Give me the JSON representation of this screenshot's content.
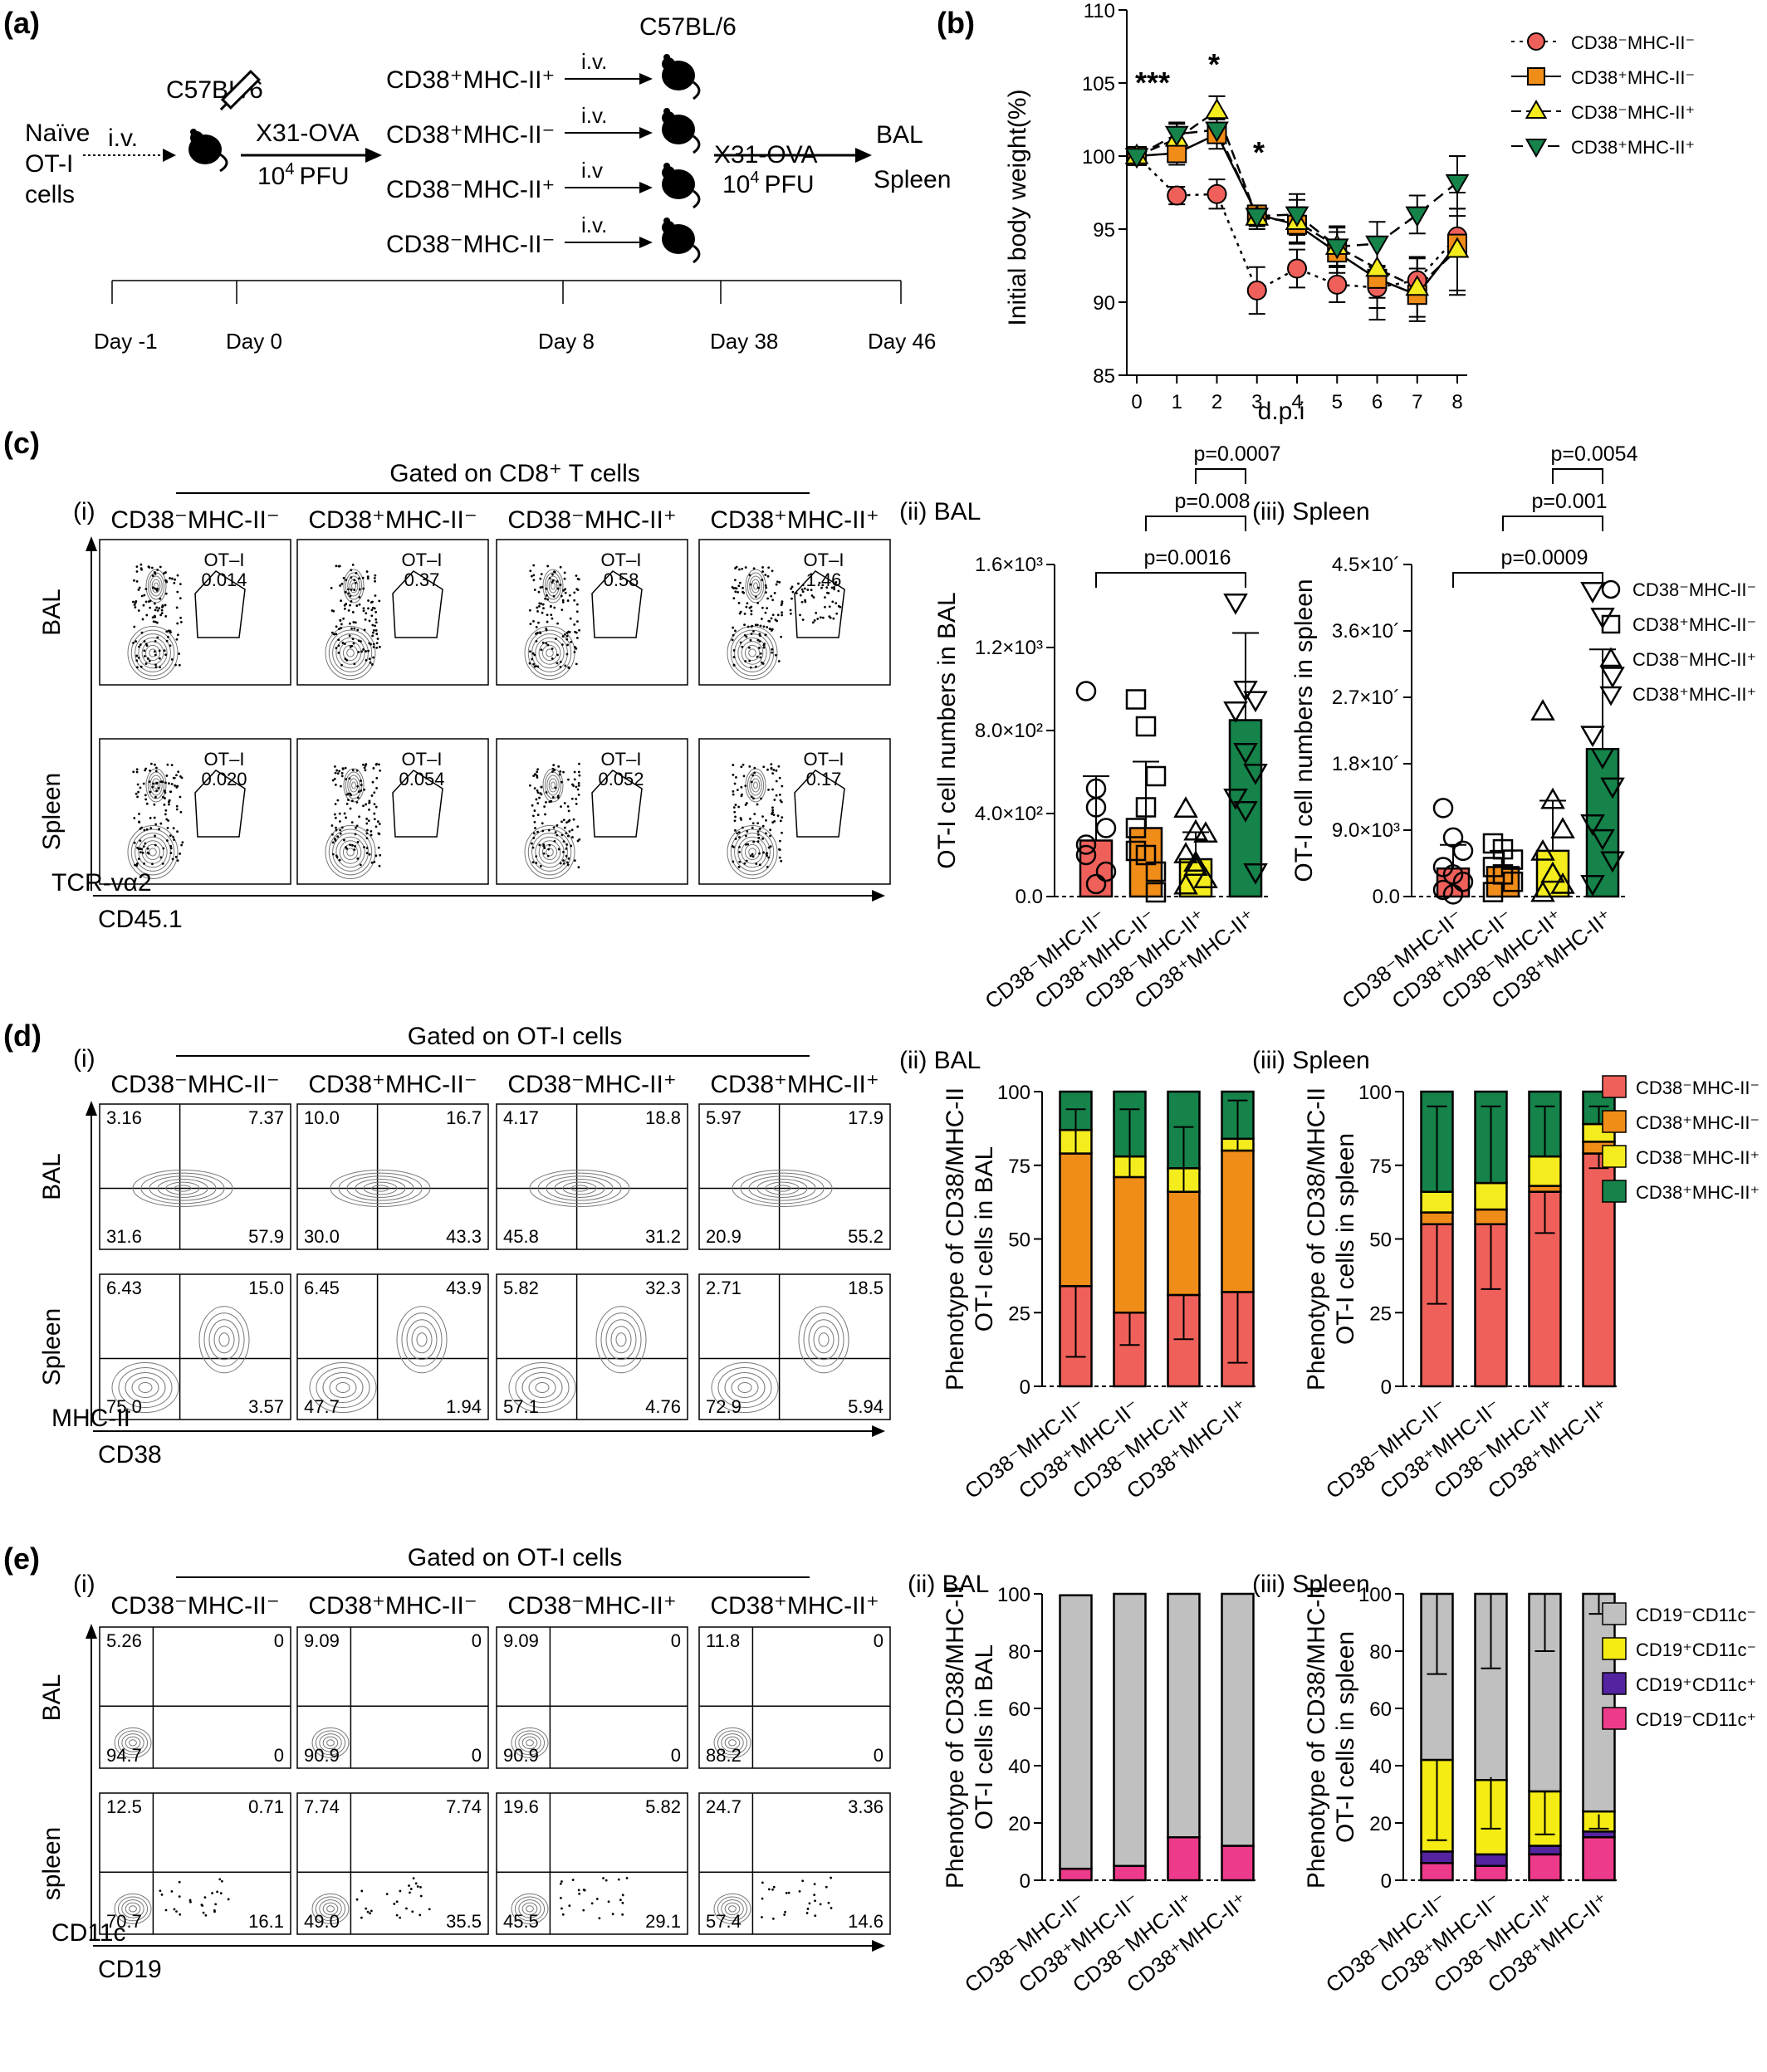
{
  "colors": {
    "neg_neg": "#f0605a",
    "pos_neg": "#f08c18",
    "neg_pos": "#f5ec1e",
    "pos_pos": "#15834a",
    "cd19_neg_cd11c_neg": "#c0c0c0",
    "cd19_pos_cd11c_neg": "#f5ec14",
    "cd19_pos_cd11c_pos": "#5424a0",
    "cd19_neg_cd11c_pos": "#ee3a8a"
  },
  "groups": {
    "neg_neg": "CD38⁻MHC-II⁻",
    "pos_neg": "CD38⁺MHC-II⁻",
    "neg_pos": "CD38⁻MHC-II⁺",
    "pos_pos": "CD38⁺MHC-II⁺"
  },
  "panel_a": {
    "letter": "(a)",
    "naive_line1": "Naïve",
    "naive_line2": "OT-I",
    "naive_line3": "cells",
    "iv": "i.v.",
    "iv2": "i.v",
    "strain": "C57BL/6",
    "virus": "X31-OVA",
    "dose_base": "10",
    "dose_exp": "4",
    "dose_unit": "PFU",
    "readout1": "BAL",
    "readout2": "Spleen",
    "days": [
      "Day -1",
      "Day 0",
      "Day 8",
      "Day 38",
      "Day 46"
    ]
  },
  "panel_b": {
    "letter": "(b)",
    "ylabel": "Initial body weight(%)",
    "xlabel": "d.p.i",
    "stars": [
      "***",
      "*",
      "*"
    ]
  },
  "panel_c": {
    "letter": "(c)",
    "sub_i": "(i)",
    "sub_ii": "(ii) BAL",
    "sub_iii": "(iii) Spleen",
    "gate_title": "Gated on CD8⁺ T cells",
    "row_labels": [
      "BAL",
      "Spleen"
    ],
    "y_axis": "TCR-vα2",
    "x_axis": "CD45.1",
    "gate_name": "OT–I",
    "bal_values": [
      "0.014",
      "0.37",
      "0.58",
      "1.46"
    ],
    "spleen_values": [
      "0.020",
      "0.054",
      "0.052",
      "0.17"
    ],
    "bal_ylabel": "OT-I cell numbers in BAL",
    "spleen_ylabel": "OT-I cell numbers in spleen",
    "bal_p": [
      "p=0.0007",
      "p=0.008",
      "p=0.0016"
    ],
    "spleen_p": [
      "p=0.0054",
      "p=0.001",
      "p=0.0009"
    ]
  },
  "panel_d": {
    "letter": "(d)",
    "sub_i": "(i)",
    "sub_ii": "(ii) BAL",
    "sub_iii": "(iii) Spleen",
    "gate_title": "Gated on OT-I cells",
    "row_labels": [
      "BAL",
      "Spleen"
    ],
    "y_axis": "MHC-II",
    "x_axis": "CD38",
    "bal_quads": [
      [
        "3.16",
        "7.37",
        "31.6",
        "57.9"
      ],
      [
        "10.0",
        "16.7",
        "30.0",
        "43.3"
      ],
      [
        "4.17",
        "18.8",
        "45.8",
        "31.2"
      ],
      [
        "5.97",
        "17.9",
        "20.9",
        "55.2"
      ]
    ],
    "spleen_quads": [
      [
        "6.43",
        "15.0",
        "75.0",
        "3.57"
      ],
      [
        "6.45",
        "43.9",
        "47.7",
        "1.94"
      ],
      [
        "5.82",
        "32.3",
        "57.1",
        "4.76"
      ],
      [
        "2.71",
        "18.5",
        "72.9",
        "5.94"
      ]
    ],
    "bal_ylabel_1": "Phenotype of CD38/MHC-II",
    "bal_ylabel_2": "OT-I cells in BAL",
    "spleen_ylabel_1": "Phenotype of CD38/MHC-II",
    "spleen_ylabel_2": "OT-I cells in spleen"
  },
  "panel_e": {
    "letter": "(e)",
    "sub_i": "(i)",
    "sub_ii": "(ii) BAL",
    "sub_iii": "(iii) Spleen",
    "gate_title": "Gated on OT-I cells",
    "row_labels": [
      "BAL",
      "spleen"
    ],
    "y_axis": "CD11c",
    "x_axis": "CD19",
    "bal_quads": [
      [
        "5.26",
        "0",
        "94.7",
        "0"
      ],
      [
        "9.09",
        "0",
        "90.9",
        "0"
      ],
      [
        "9.09",
        "0",
        "90.9",
        "0"
      ],
      [
        "11.8",
        "0",
        "88.2",
        "0"
      ]
    ],
    "spleen_quads": [
      [
        "12.5",
        "0.71",
        "70.7",
        "16.1"
      ],
      [
        "7.74",
        "7.74",
        "49.0",
        "35.5"
      ],
      [
        "19.6",
        "5.82",
        "45.5",
        "29.1"
      ],
      [
        "24.7",
        "3.36",
        "57.4",
        "14.6"
      ]
    ],
    "legend": [
      "CD19⁻CD11c⁻",
      "CD19⁺CD11c⁻",
      "CD19⁺CD11c⁺",
      "CD19⁻CD11c⁺"
    ],
    "bal_ylabel_1": "Phenotype of CD38/MHC-II",
    "bal_ylabel_2": "OT-I cells in BAL",
    "spleen_ylabel_1": "Phenotype of CD38/MHC-II",
    "spleen_ylabel_2": "OT-I cells in spleen"
  },
  "chart_data": [
    {
      "id": "b_weight",
      "type": "line",
      "x": [
        0,
        1,
        2,
        3,
        4,
        5,
        6,
        7,
        8
      ],
      "ylim": [
        85,
        110
      ],
      "yticks": [
        85,
        90,
        95,
        100,
        105,
        110
      ],
      "series": [
        {
          "name": "CD38⁻MHC-II⁻",
          "values": [
            100,
            97.3,
            97.4,
            90.8,
            92.3,
            91.2,
            91.0,
            91.5,
            94.5
          ],
          "err": [
            0,
            0.6,
            1.0,
            1.6,
            1.3,
            1.2,
            1.4,
            1.6,
            1.4
          ]
        },
        {
          "name": "CD38⁺MHC-II⁻",
          "values": [
            100,
            100.2,
            101.5,
            96.0,
            95.3,
            93.4,
            91.6,
            90.5,
            94.0
          ],
          "err": [
            0,
            0.8,
            1.0,
            0.6,
            1.2,
            1.4,
            2.8,
            1.8,
            3.5
          ]
        },
        {
          "name": "CD38⁻MHC-II⁺",
          "values": [
            100,
            101.2,
            103.1,
            95.8,
            95.5,
            93.8,
            92.3,
            91.0,
            93.6
          ],
          "err": [
            0,
            1.0,
            1.0,
            0.8,
            1.5,
            1.4,
            2.0,
            2.0,
            2.8
          ]
        },
        {
          "name": "CD38⁺MHC-II⁺",
          "values": [
            100,
            101.5,
            101.8,
            95.9,
            96.0,
            93.8,
            94.0,
            96.0,
            98.2
          ],
          "err": [
            0,
            0.8,
            0.8,
            0.7,
            1.4,
            1.3,
            1.5,
            1.3,
            1.8
          ]
        }
      ]
    },
    {
      "id": "c_bal",
      "type": "bar",
      "categories": [
        "CD38⁻MHC-II⁻",
        "CD38⁺MHC-II⁻",
        "CD38⁻MHC-II⁺",
        "CD38⁺MHC-II⁺"
      ],
      "values": [
        270,
        330,
        180,
        850
      ],
      "err": [
        310,
        320,
        130,
        420
      ],
      "ylim": [
        0,
        1600
      ],
      "ytick_labels": [
        "0.0",
        "4.0×10²",
        "8.0×10²",
        "1.2×10³",
        "1.6×10³"
      ],
      "points": [
        [
          990,
          520,
          330,
          250,
          60,
          120,
          200,
          430
        ],
        [
          950,
          820,
          580,
          330,
          200,
          120,
          220,
          430,
          20
        ],
        [
          420,
          310,
          300,
          200,
          160,
          80,
          50,
          140
        ],
        [
          1420,
          1000,
          950,
          900,
          700,
          600,
          480,
          420,
          120
        ]
      ]
    },
    {
      "id": "c_spleen",
      "type": "bar",
      "categories": [
        "CD38⁻MHC-II⁻",
        "CD38⁺MHC-II⁻",
        "CD38⁻MHC-II⁺",
        "CD38⁺MHC-II⁺"
      ],
      "values": [
        3800,
        4000,
        6200,
        20000
      ],
      "err": [
        3200,
        2200,
        6800,
        13500
      ],
      "ylim": [
        0,
        45000
      ],
      "ytick_labels": [
        "0.0",
        "9.0×10³",
        "1.8×10´",
        "2.7×10´",
        "3.6×10´",
        "4.5×10´"
      ],
      "points": [
        [
          12000,
          8000,
          6200,
          4000,
          3000,
          2000,
          900,
          300
        ],
        [
          7200,
          6400,
          5000,
          4000,
          3000,
          2000,
          600
        ],
        [
          25000,
          13000,
          9000,
          6000,
          3000,
          1500,
          400
        ],
        [
          41500,
          38000,
          30000,
          22000,
          19000,
          15000,
          10000,
          8000,
          5000,
          1800
        ]
      ]
    },
    {
      "id": "d_bal",
      "type": "bar",
      "stacked": true,
      "categories": [
        "CD38⁻MHC-II⁻",
        "CD38⁺MHC-II⁻",
        "CD38⁻MHC-II⁺",
        "CD38⁺MHC-II⁺"
      ],
      "ylim": [
        0,
        100
      ],
      "yticks": [
        0,
        25,
        50,
        75,
        100
      ],
      "series": [
        {
          "name": "CD38⁻MHC-II⁻",
          "values": [
            34,
            25,
            31,
            32
          ]
        },
        {
          "name": "CD38⁺MHC-II⁻",
          "values": [
            45,
            46,
            35,
            48
          ]
        },
        {
          "name": "CD38⁻MHC-II⁺",
          "values": [
            8,
            7,
            8,
            4
          ]
        },
        {
          "name": "CD38⁺MHC-II⁺",
          "values": [
            13,
            22,
            26,
            16
          ]
        }
      ]
    },
    {
      "id": "d_spleen",
      "type": "bar",
      "stacked": true,
      "categories": [
        "CD38⁻MHC-II⁻",
        "CD38⁺MHC-II⁻",
        "CD38⁻MHC-II⁺",
        "CD38⁺MHC-II⁺"
      ],
      "ylim": [
        0,
        100
      ],
      "yticks": [
        0,
        25,
        50,
        75,
        100
      ],
      "series": [
        {
          "name": "CD38⁻MHC-II⁻",
          "values": [
            55,
            55,
            66,
            79
          ]
        },
        {
          "name": "CD38⁺MHC-II⁻",
          "values": [
            4,
            5,
            2,
            4
          ]
        },
        {
          "name": "CD38⁻MHC-II⁺",
          "values": [
            7,
            9,
            10,
            6
          ]
        },
        {
          "name": "CD38⁺MHC-II⁺",
          "values": [
            34,
            31,
            22,
            11
          ]
        }
      ]
    },
    {
      "id": "e_bal",
      "type": "bar",
      "stacked": true,
      "categories": [
        "CD38⁻MHC-II⁻",
        "CD38⁺MHC-II⁻",
        "CD38⁻MHC-II⁺",
        "CD38⁺MHC-II⁺"
      ],
      "ylim": [
        0,
        100
      ],
      "yticks": [
        0,
        20,
        40,
        60,
        80,
        100
      ],
      "series": [
        {
          "name": "CD19⁻CD11c⁻",
          "values": [
            95.5,
            95,
            85,
            88
          ]
        },
        {
          "name": "CD19⁺CD11c⁻",
          "values": [
            0,
            0,
            0,
            0
          ]
        },
        {
          "name": "CD19⁺CD11c⁺",
          "values": [
            0,
            0,
            0,
            0
          ]
        },
        {
          "name": "CD19⁻CD11c⁺",
          "values": [
            4,
            5,
            15,
            12
          ]
        }
      ]
    },
    {
      "id": "e_spleen",
      "type": "bar",
      "stacked": true,
      "categories": [
        "CD38⁻MHC-II⁻",
        "CD38⁺MHC-II⁻",
        "CD38⁻MHC-II⁺",
        "CD38⁺MHC-II⁺"
      ],
      "ylim": [
        0,
        100
      ],
      "yticks": [
        0,
        20,
        40,
        60,
        80,
        100
      ],
      "series": [
        {
          "name": "CD19⁻CD11c⁻",
          "values": [
            58,
            65,
            69,
            76
          ]
        },
        {
          "name": "CD19⁺CD11c⁻",
          "values": [
            32,
            26,
            19,
            7
          ]
        },
        {
          "name": "CD19⁺CD11c⁺",
          "values": [
            4,
            4,
            3,
            2
          ]
        },
        {
          "name": "CD19⁻CD11c⁺",
          "values": [
            6,
            5,
            9,
            15
          ]
        }
      ]
    }
  ]
}
